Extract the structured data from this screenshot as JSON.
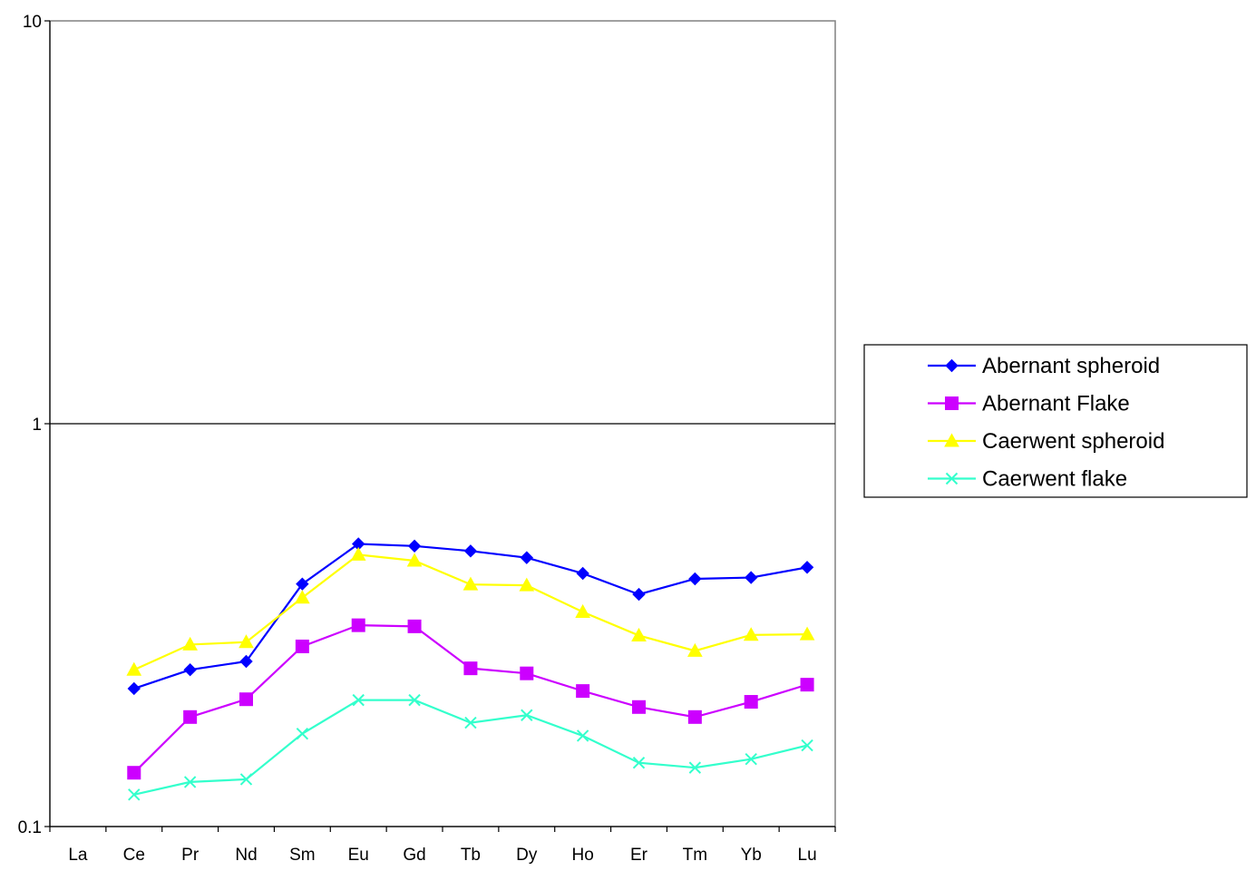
{
  "chart_data": {
    "type": "line",
    "yscale": "log",
    "ylim": [
      0.1,
      10
    ],
    "y_ticks": [
      {
        "value": 0.1,
        "label": "0.1"
      },
      {
        "value": 1,
        "label": "1"
      },
      {
        "value": 10,
        "label": "10"
      }
    ],
    "grid": "horizontal major only",
    "legend_position": "right",
    "categories": [
      "La",
      "Ce",
      "Pr",
      "Nd",
      "Sm",
      "Eu",
      "Gd",
      "Tb",
      "Dy",
      "Ho",
      "Er",
      "Tm",
      "Yb",
      "Lu"
    ],
    "series": [
      {
        "name": "Abernant spheroid",
        "color": "#0000ff",
        "marker": "diamond",
        "values": [
          null,
          0.22,
          0.245,
          0.257,
          0.4,
          0.503,
          0.497,
          0.483,
          0.465,
          0.425,
          0.377,
          0.412,
          0.415,
          0.44
        ]
      },
      {
        "name": "Abernant Flake",
        "color": "#cc00ff",
        "marker": "square",
        "values": [
          null,
          0.136,
          0.187,
          0.207,
          0.28,
          0.316,
          0.314,
          0.247,
          0.24,
          0.217,
          0.198,
          0.187,
          0.204,
          0.225
        ]
      },
      {
        "name": "Caerwent spheroid",
        "color": "#ffff00",
        "marker": "triangle",
        "values": [
          null,
          0.245,
          0.283,
          0.287,
          0.37,
          0.473,
          0.457,
          0.399,
          0.397,
          0.341,
          0.298,
          0.273,
          0.299,
          0.3
        ]
      },
      {
        "name": "Caerwent flake",
        "color": "#33ffcc",
        "marker": "x",
        "values": [
          null,
          0.12,
          0.129,
          0.131,
          0.17,
          0.206,
          0.206,
          0.181,
          0.189,
          0.168,
          0.144,
          0.14,
          0.147,
          0.159
        ]
      }
    ]
  }
}
